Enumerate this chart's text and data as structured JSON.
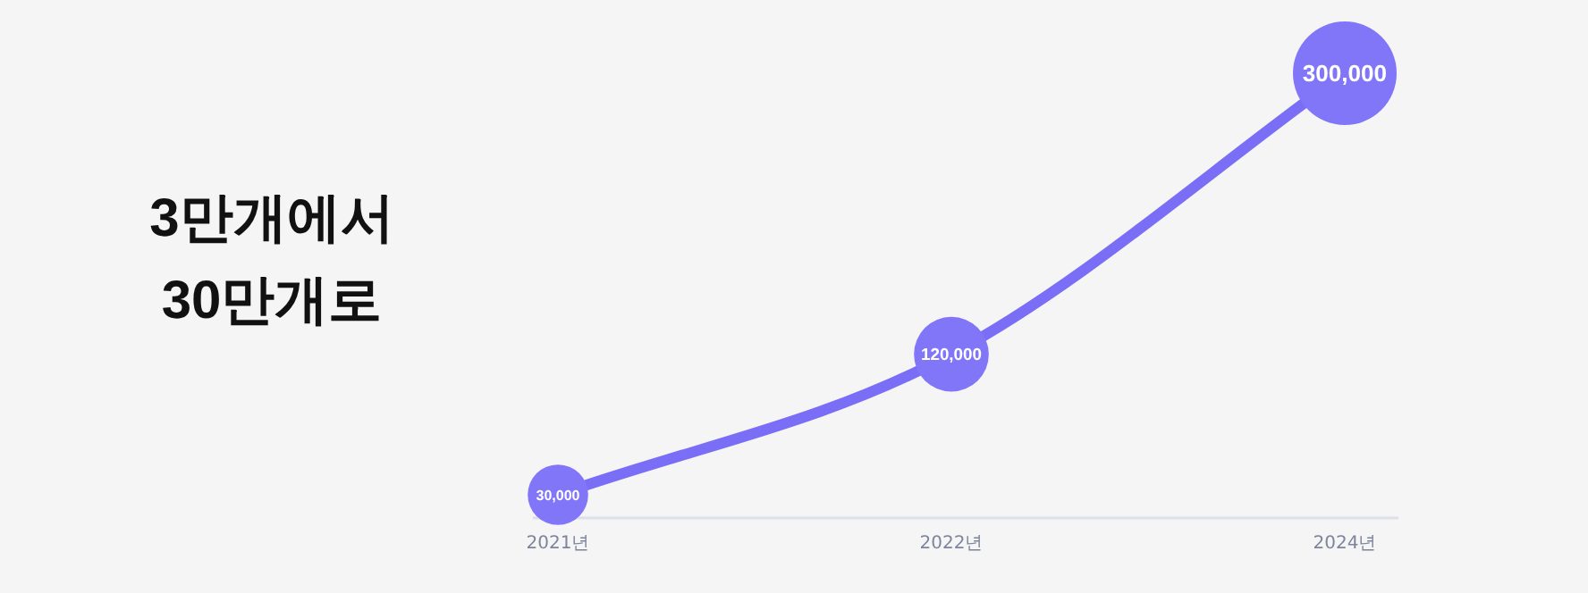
{
  "chart_data": {
    "type": "line",
    "title": "3만개에서\n30만개로",
    "categories": [
      "2021년",
      "2022년",
      "2024년"
    ],
    "series": [
      {
        "color": "#7b6ef6",
        "values": [
          30000,
          120000,
          300000
        ]
      },
      {
        "type": "bubble",
        "color": "#8276f8",
        "values": [
          30000,
          120000,
          300000
        ],
        "sizes": [
          0.34,
          0.52,
          1
        ],
        "value_labels": [
          "30,000",
          "120,000",
          "300,000"
        ]
      }
    ],
    "tick_labels": "x"
  }
}
